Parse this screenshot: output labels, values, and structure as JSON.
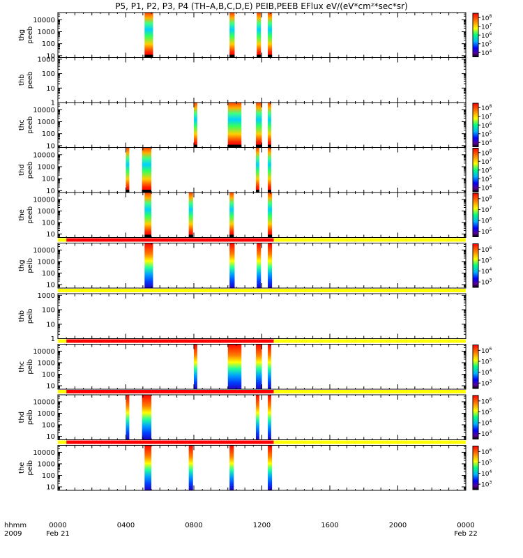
{
  "chart_data": {
    "type": "heatmap",
    "title": "P5, P1, P2, P3, P4 (TH–A,B,C,D,E) PEIB,PEEB EFlux eV/(eV*cm²*sec*sr)",
    "time_range": [
      "2009-02-21 00:00",
      "2009-02-22 00:00"
    ],
    "x_ticks": [
      {
        "hour": 0,
        "label": "0000"
      },
      {
        "hour": 4,
        "label": "0400"
      },
      {
        "hour": 8,
        "label": "0800"
      },
      {
        "hour": 12,
        "label": "1200"
      },
      {
        "hour": 16,
        "label": "1600"
      },
      {
        "hour": 20,
        "label": "2000"
      },
      {
        "hour": 24,
        "label": "0000"
      }
    ],
    "x_sublabels": {
      "start": "Feb 21",
      "end": "Feb 22"
    },
    "x_row_label": "hhmm",
    "x_year_label": "2009",
    "panels": [
      {
        "label": "thg\npeeb",
        "ylim": [
          7,
          40000
        ],
        "yticks": [
          "10",
          "100",
          "1000",
          "10000"
        ],
        "yvals": [
          10,
          100,
          1000,
          10000
        ],
        "colorbar": {
          "exp": [
            4,
            5,
            6,
            7,
            8
          ],
          "range": [
            3.5,
            8.5
          ]
        },
        "bursts": [
          [
            5.1,
            5.6
          ],
          [
            10.1,
            10.4
          ],
          [
            11.7,
            11.95
          ],
          [
            12.35,
            12.6
          ]
        ],
        "style": "electron"
      },
      {
        "label": "thb\npeeb",
        "ylim": [
          1,
          1300
        ],
        "yticks": [
          "1",
          "10",
          "100",
          "1000"
        ],
        "yvals": [
          1,
          10,
          100,
          1000
        ],
        "colorbar": null,
        "bursts": [],
        "style": "electron"
      },
      {
        "label": "thc\npeeb",
        "ylim": [
          7,
          40000
        ],
        "yticks": [
          "10",
          "100",
          "1000",
          "10000"
        ],
        "yvals": [
          10,
          100,
          1000,
          10000
        ],
        "colorbar": {
          "exp": [
            4,
            5,
            6,
            7,
            8
          ],
          "range": [
            3.5,
            8.5
          ]
        },
        "bursts": [
          [
            8.0,
            8.2
          ],
          [
            10.0,
            10.8
          ],
          [
            11.65,
            12.0
          ],
          [
            12.35,
            12.55
          ]
        ],
        "style": "electron"
      },
      {
        "label": "thd\npeeb",
        "ylim": [
          7,
          40000
        ],
        "yticks": [
          "10",
          "100",
          "1000",
          "10000"
        ],
        "yvals": [
          10,
          100,
          1000,
          10000
        ],
        "colorbar": {
          "exp": [
            4,
            5,
            6,
            7,
            8
          ],
          "range": [
            3.5,
            8.5
          ]
        },
        "bursts": [
          [
            4.0,
            4.2
          ],
          [
            4.95,
            5.5
          ],
          [
            11.65,
            11.85
          ],
          [
            12.35,
            12.55
          ]
        ],
        "style": "electron"
      },
      {
        "label": "the\npeeb",
        "ylim": [
          5,
          40000
        ],
        "yticks": [
          "10",
          "100",
          "1000",
          "10000"
        ],
        "yvals": [
          10,
          100,
          1000,
          10000
        ],
        "colorbar": {
          "exp": [
            5,
            6,
            7,
            8
          ],
          "range": [
            4.5,
            8.5
          ]
        },
        "bursts": [
          [
            5.1,
            5.5
          ],
          [
            7.7,
            7.95
          ],
          [
            10.1,
            10.35
          ],
          [
            12.35,
            12.6
          ]
        ],
        "style": "electron"
      },
      {
        "label": "thg\npeib",
        "ylim": [
          5,
          40000
        ],
        "yticks": [
          "10",
          "100",
          "1000",
          "10000"
        ],
        "yvals": [
          10,
          100,
          1000,
          10000
        ],
        "colorbar": {
          "exp": [
            3,
            4,
            5,
            6
          ],
          "range": [
            2.5,
            6.5
          ]
        },
        "bursts": [
          [
            5.1,
            5.6
          ],
          [
            10.1,
            10.4
          ],
          [
            11.7,
            11.95
          ],
          [
            12.35,
            12.6
          ]
        ],
        "style": "ion",
        "mode_bar": [
          {
            "from": 0.0,
            "to": 0.5,
            "color": "#ffff00"
          },
          {
            "from": 0.5,
            "to": 12.7,
            "color": "#ff0000"
          },
          {
            "from": 12.7,
            "to": 24.0,
            "color": "#ffff00"
          }
        ]
      },
      {
        "label": "thb\npeib",
        "ylim": [
          1,
          1300
        ],
        "yticks": [
          "1",
          "10",
          "100",
          "1000"
        ],
        "yvals": [
          1,
          10,
          100,
          1000
        ],
        "colorbar": null,
        "bursts": [],
        "style": "ion",
        "mode_bar": [
          {
            "from": 0.0,
            "to": 24.0,
            "color": "#ffff00"
          }
        ]
      },
      {
        "label": "thc\npeib",
        "ylim": [
          5,
          40000
        ],
        "yticks": [
          "10",
          "100",
          "1000",
          "10000"
        ],
        "yvals": [
          10,
          100,
          1000,
          10000
        ],
        "colorbar": {
          "exp": [
            3,
            4,
            5,
            6
          ],
          "range": [
            2.5,
            6.5
          ]
        },
        "bursts": [
          [
            8.0,
            8.2
          ],
          [
            10.0,
            10.8
          ],
          [
            11.65,
            12.0
          ],
          [
            12.35,
            12.55
          ]
        ],
        "style": "ion",
        "mode_bar": [
          {
            "from": 0.0,
            "to": 0.5,
            "color": "#ffff00"
          },
          {
            "from": 0.5,
            "to": 12.7,
            "color": "#ff0000"
          },
          {
            "from": 12.7,
            "to": 24.0,
            "color": "#ffff00"
          }
        ]
      },
      {
        "label": "thd\npeib",
        "ylim": [
          5,
          40000
        ],
        "yticks": [
          "10",
          "100",
          "1000",
          "10000"
        ],
        "yvals": [
          10,
          100,
          1000,
          10000
        ],
        "colorbar": {
          "exp": [
            3,
            4,
            5,
            6
          ],
          "range": [
            2.5,
            6.5
          ]
        },
        "bursts": [
          [
            4.0,
            4.2
          ],
          [
            4.95,
            5.5
          ],
          [
            11.65,
            11.85
          ],
          [
            12.35,
            12.55
          ]
        ],
        "style": "ion",
        "mode_bar": [
          {
            "from": 0.0,
            "to": 0.5,
            "color": "#ffff00"
          },
          {
            "from": 0.5,
            "to": 12.7,
            "color": "#ff0000"
          },
          {
            "from": 12.7,
            "to": 24.0,
            "color": "#ffff00"
          }
        ]
      },
      {
        "label": "the\npeib",
        "ylim": [
          5,
          40000
        ],
        "yticks": [
          "10",
          "100",
          "1000",
          "10000"
        ],
        "yvals": [
          10,
          100,
          1000,
          10000
        ],
        "colorbar": {
          "exp": [
            3,
            4,
            5,
            6
          ],
          "range": [
            2.5,
            6.5
          ]
        },
        "bursts": [
          [
            5.1,
            5.5
          ],
          [
            7.7,
            7.95
          ],
          [
            10.1,
            10.35
          ],
          [
            12.35,
            12.6
          ]
        ],
        "style": "ion",
        "mode_bar": [
          {
            "from": 0.0,
            "to": 0.5,
            "color": "#ffff00"
          },
          {
            "from": 0.5,
            "to": 12.7,
            "color": "#ff0000"
          },
          {
            "from": 12.7,
            "to": 24.0,
            "color": "#ffff00"
          }
        ]
      }
    ]
  }
}
